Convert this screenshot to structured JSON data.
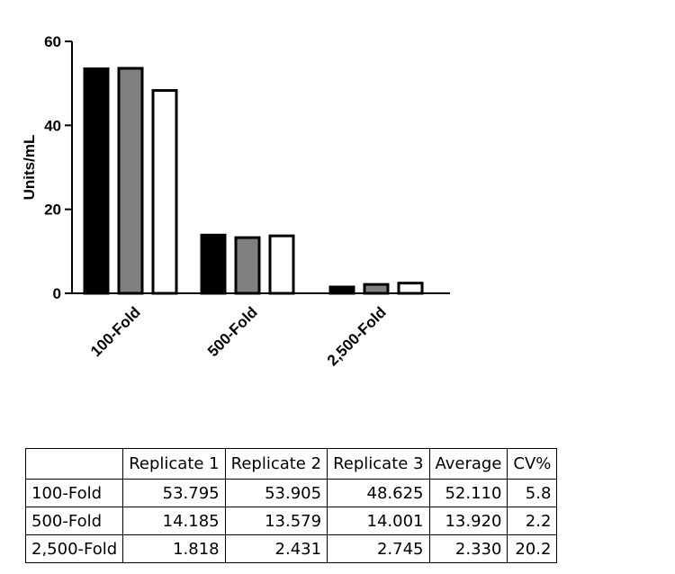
{
  "chart_data": {
    "type": "bar",
    "categories": [
      "100-Fold",
      "500-Fold",
      "2,500-Fold"
    ],
    "series": [
      {
        "values": [
          53.795,
          14.185,
          1.818
        ],
        "color": "#000000"
      },
      {
        "values": [
          53.905,
          13.579,
          2.431
        ],
        "color": "#808080"
      },
      {
        "values": [
          48.625,
          14.001,
          2.745
        ],
        "color": "#ffffff"
      }
    ],
    "title": "",
    "xlabel": "",
    "ylabel": "Units/mL",
    "ylim": [
      0,
      60
    ],
    "yticks": [
      0,
      20,
      40,
      60
    ],
    "grid": false,
    "bar_outline_color": "#000000"
  },
  "table": {
    "headers": [
      "",
      "Replicate 1",
      "Replicate 2",
      "Replicate 3",
      "Average",
      "CV%"
    ],
    "rows": [
      [
        "100-Fold",
        "53.795",
        "53.905",
        "48.625",
        "52.110",
        "5.8"
      ],
      [
        "500-Fold",
        "14.185",
        "13.579",
        "14.001",
        "13.920",
        "2.2"
      ],
      [
        "2,500-Fold",
        "1.818",
        "2.431",
        "2.745",
        "2.330",
        "20.2"
      ]
    ]
  }
}
